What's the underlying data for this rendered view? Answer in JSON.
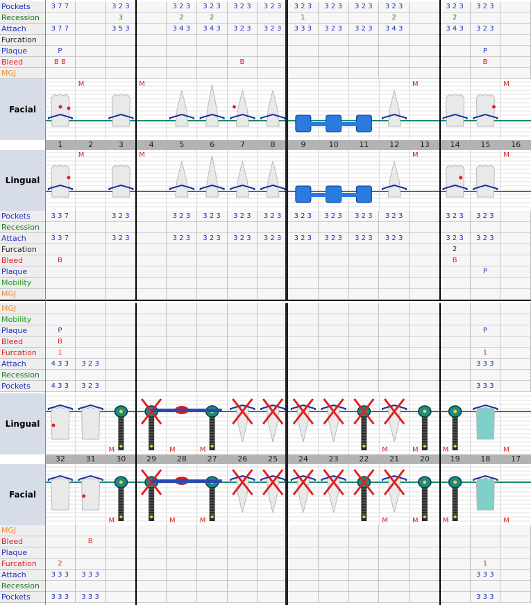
{
  "colors": {
    "pockets": "#1f2fbf",
    "recession": "#1a7a1a",
    "attach": "#1f2fbf",
    "furcation": "#222222",
    "plaque": "#1f2fbf",
    "bleed": "#e02020",
    "mgj": "#f08a30",
    "mobility": "#1a9a1a",
    "gumline": "#1a8a6a",
    "bone": "#1a2fa0"
  },
  "upper": {
    "teeth": [
      "1",
      "2",
      "3",
      "4",
      "5",
      "6",
      "7",
      "8",
      "9",
      "10",
      "11",
      "12",
      "13",
      "14",
      "15",
      "16"
    ],
    "facial_label": "Facial",
    "lingual_label": "Lingual",
    "facial_rows": [
      {
        "label": "Pockets",
        "color": "pockets",
        "values": [
          "3 7 7",
          "",
          "3 2 3",
          "",
          "3 2 3",
          "3 2 3",
          "3 2 3",
          "3 2 3",
          "3 2 3",
          "3 2 3",
          "3 2 3",
          "3 2 3",
          "",
          "3 2 3",
          "3 2 3",
          ""
        ]
      },
      {
        "label": "Recession",
        "color": "recession",
        "values": [
          "",
          "",
          "3",
          "",
          "2",
          "2",
          "",
          "",
          "1",
          "",
          "",
          "2",
          "",
          "2",
          "",
          ""
        ]
      },
      {
        "label": "Attach",
        "color": "attach",
        "values": [
          "3 7 7",
          "",
          "3 5 3",
          "",
          "3 4 3",
          "3 4 3",
          "3 2 3",
          "3 2 3",
          "3 3 3",
          "3 2 3",
          "3 2 3",
          "3 4 3",
          "",
          "3 4 3",
          "3 2 3",
          ""
        ]
      },
      {
        "label": "Furcation",
        "color": "furcation",
        "values": [
          "",
          "",
          "",
          "",
          "",
          "",
          "",
          "",
          "",
          "",
          "",
          "",
          "",
          "",
          "",
          ""
        ]
      },
      {
        "label": "Plaque",
        "color": "plaque",
        "values": [
          "P",
          "",
          "",
          "",
          "",
          "",
          "",
          "",
          "",
          "",
          "",
          "",
          "",
          "",
          "P",
          ""
        ]
      },
      {
        "label": "Bleed",
        "color": "bleed",
        "values": [
          "B B",
          "",
          "",
          "",
          "",
          "",
          "B",
          "",
          "",
          "",
          "",
          "",
          "",
          "",
          "B",
          ""
        ]
      },
      {
        "label": "MGJ",
        "color": "mgj",
        "values": [
          "",
          "",
          "",
          "",
          "",
          "",
          "",
          "",
          "",
          "",
          "",
          "",
          "",
          "",
          "",
          ""
        ]
      }
    ],
    "lingual_rows": [
      {
        "label": "Pockets",
        "color": "pockets",
        "values": [
          "3 3 7",
          "",
          "3 2 3",
          "",
          "3 2 3",
          "3 2 3",
          "3 2 3",
          "3 2 3",
          "3 2 3",
          "3 2 3",
          "3 2 3",
          "3 2 3",
          "",
          "3 2 3",
          "3 2 3",
          ""
        ]
      },
      {
        "label": "Recession",
        "color": "recession",
        "values": [
          "",
          "",
          "",
          "",
          "",
          "",
          "",
          "",
          "",
          "",
          "",
          "",
          "",
          "",
          "",
          ""
        ]
      },
      {
        "label": "Attach",
        "color": "attach",
        "values": [
          "3 3 7",
          "",
          "3 2 3",
          "",
          "3 2 3",
          "3 2 3",
          "3 2 3",
          "3 2 3",
          "3 2 3",
          "3 2 3",
          "3 2 3",
          "3 2 3",
          "",
          "3 2 3",
          "3 2 3",
          ""
        ]
      },
      {
        "label": "Furcation",
        "color": "furcation",
        "values": [
          "",
          "",
          "",
          "",
          "",
          "",
          "",
          "",
          "",
          "",
          "",
          "",
          "",
          "2",
          "",
          ""
        ]
      },
      {
        "label": "Bleed",
        "color": "bleed",
        "values": [
          "B",
          "",
          "",
          "",
          "",
          "",
          "",
          "",
          "",
          "",
          "",
          "",
          "",
          "B",
          "",
          ""
        ]
      },
      {
        "label": "Plaque",
        "color": "plaque",
        "values": [
          "",
          "",
          "",
          "",
          "",
          "",
          "",
          "",
          "",
          "",
          "",
          "",
          "",
          "",
          "P",
          ""
        ]
      },
      {
        "label": "Mobility",
        "color": "mobility",
        "values": [
          "",
          "",
          "",
          "",
          "",
          "",
          "",
          "",
          "",
          "",
          "",
          "",
          "",
          "",
          "",
          ""
        ]
      },
      {
        "label": "MGJ",
        "color": "mgj",
        "values": [
          "",
          "",
          "",
          "",
          "",
          "",
          "",
          "",
          "",
          "",
          "",
          "",
          "",
          "",
          "",
          ""
        ]
      }
    ]
  },
  "lower": {
    "teeth": [
      "32",
      "31",
      "30",
      "29",
      "28",
      "27",
      "26",
      "25",
      "24",
      "23",
      "22",
      "21",
      "20",
      "19",
      "18",
      "17"
    ],
    "lingual_label": "Lingual",
    "facial_label": "Facial",
    "lingual_rows": [
      {
        "label": "MGJ",
        "color": "mgj",
        "values": [
          "",
          "",
          "",
          "",
          "",
          "",
          "",
          "",
          "",
          "",
          "",
          "",
          "",
          "",
          "",
          ""
        ]
      },
      {
        "label": "Mobility",
        "color": "mobility",
        "values": [
          "",
          "",
          "",
          "",
          "",
          "",
          "",
          "",
          "",
          "",
          "",
          "",
          "",
          "",
          "",
          ""
        ]
      },
      {
        "label": "Plaque",
        "color": "plaque",
        "values": [
          "P",
          "",
          "",
          "",
          "",
          "",
          "",
          "",
          "",
          "",
          "",
          "",
          "",
          "",
          "P",
          ""
        ]
      },
      {
        "label": "Bleed",
        "color": "bleed",
        "values": [
          "B",
          "",
          "",
          "",
          "",
          "",
          "",
          "",
          "",
          "",
          "",
          "",
          "",
          "",
          "",
          ""
        ]
      },
      {
        "label": "Furcation",
        "color": "bleed",
        "values": [
          "1",
          "",
          "",
          "",
          "",
          "",
          "",
          "",
          "",
          "",
          "",
          "",
          "",
          "",
          "1",
          ""
        ]
      },
      {
        "label": "Attach",
        "color": "attach",
        "values": [
          "4 3 3",
          "3 2 3",
          "",
          "",
          "",
          "",
          "",
          "",
          "",
          "",
          "",
          "",
          "",
          "",
          "3 3 3",
          ""
        ]
      },
      {
        "label": "Recession",
        "color": "recession",
        "values": [
          "",
          "",
          "",
          "",
          "",
          "",
          "",
          "",
          "",
          "",
          "",
          "",
          "",
          "",
          "",
          ""
        ]
      },
      {
        "label": "Pockets",
        "color": "pockets",
        "values": [
          "4 3 3",
          "3 2 3",
          "",
          "",
          "",
          "",
          "",
          "",
          "",
          "",
          "",
          "",
          "",
          "",
          "3 3 3",
          ""
        ]
      }
    ],
    "facial_rows": [
      {
        "label": "MGJ",
        "color": "mgj",
        "values": [
          "",
          "",
          "",
          "",
          "",
          "",
          "",
          "",
          "",
          "",
          "",
          "",
          "",
          "",
          "",
          ""
        ]
      },
      {
        "label": "Bleed",
        "color": "bleed",
        "values": [
          "",
          "B",
          "",
          "",
          "",
          "",
          "",
          "",
          "",
          "",
          "",
          "",
          "",
          "",
          "",
          ""
        ]
      },
      {
        "label": "Plaque",
        "color": "plaque",
        "values": [
          "",
          "",
          "",
          "",
          "",
          "",
          "",
          "",
          "",
          "",
          "",
          "",
          "",
          "",
          "",
          ""
        ]
      },
      {
        "label": "Furcation",
        "color": "bleed",
        "values": [
          "2",
          "",
          "",
          "",
          "",
          "",
          "",
          "",
          "",
          "",
          "",
          "",
          "",
          "",
          "1",
          ""
        ]
      },
      {
        "label": "Attach",
        "color": "attach",
        "values": [
          "3 3 3",
          "3 3 3",
          "",
          "",
          "",
          "",
          "",
          "",
          "",
          "",
          "",
          "",
          "",
          "",
          "3 3 3",
          ""
        ]
      },
      {
        "label": "Recession",
        "color": "recession",
        "values": [
          "",
          "",
          "",
          "",
          "",
          "",
          "",
          "",
          "",
          "",
          "",
          "",
          "",
          "",
          "",
          ""
        ]
      },
      {
        "label": "Pockets",
        "color": "pockets",
        "values": [
          "3 3 3",
          "3 3 3",
          "",
          "",
          "",
          "",
          "",
          "",
          "",
          "",
          "",
          "",
          "",
          "",
          "3 3 3",
          ""
        ]
      }
    ]
  },
  "mobility_marker": "M"
}
